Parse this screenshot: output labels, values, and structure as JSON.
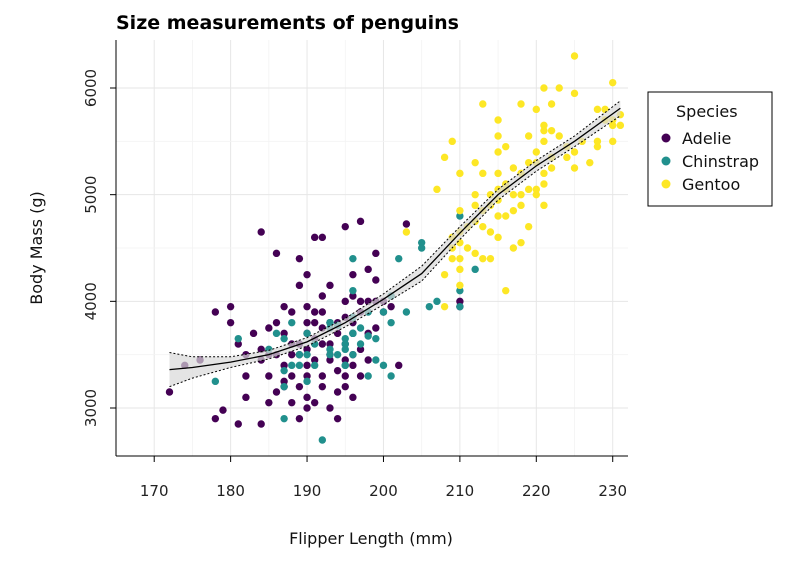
{
  "chart_data": {
    "type": "scatter",
    "title": "Size measurements of penguins",
    "xlabel": "Flipper Length (mm)",
    "ylabel": "Body Mass (g)",
    "xlim": [
      165,
      232
    ],
    "ylim": [
      2550,
      6450
    ],
    "x_ticks": [
      170,
      180,
      190,
      200,
      210,
      220,
      230
    ],
    "y_ticks": [
      3000,
      4000,
      5000,
      6000
    ],
    "grid": true,
    "legend": {
      "title": "Species",
      "placement": "right"
    },
    "series": [
      {
        "name": "Adelie",
        "color": "#440154",
        "points": [
          [
            172,
            3150
          ],
          [
            174,
            3400
          ],
          [
            176,
            3450
          ],
          [
            178,
            3900
          ],
          [
            178,
            2900
          ],
          [
            179,
            2980
          ],
          [
            180,
            3800
          ],
          [
            180,
            3950
          ],
          [
            181,
            3600
          ],
          [
            181,
            2850
          ],
          [
            182,
            3300
          ],
          [
            182,
            3500
          ],
          [
            182,
            3100
          ],
          [
            183,
            3700
          ],
          [
            184,
            3550
          ],
          [
            184,
            3450
          ],
          [
            184,
            2850
          ],
          [
            184,
            4650
          ],
          [
            185,
            3750
          ],
          [
            185,
            3300
          ],
          [
            185,
            3500
          ],
          [
            185,
            3050
          ],
          [
            186,
            3500
          ],
          [
            186,
            3150
          ],
          [
            186,
            4450
          ],
          [
            186,
            3800
          ],
          [
            187,
            3400
          ],
          [
            187,
            3700
          ],
          [
            187,
            3950
          ],
          [
            187,
            3200
          ],
          [
            187,
            3250
          ],
          [
            188,
            3600
          ],
          [
            188,
            3300
          ],
          [
            188,
            3500
          ],
          [
            188,
            3900
          ],
          [
            188,
            3050
          ],
          [
            189,
            3500
          ],
          [
            189,
            3600
          ],
          [
            189,
            4150
          ],
          [
            189,
            3200
          ],
          [
            189,
            2900
          ],
          [
            189,
            4400
          ],
          [
            190,
            3550
          ],
          [
            190,
            3950
          ],
          [
            190,
            3700
          ],
          [
            190,
            3400
          ],
          [
            190,
            4250
          ],
          [
            190,
            3100
          ],
          [
            190,
            3800
          ],
          [
            190,
            3000
          ],
          [
            190,
            3300
          ],
          [
            191,
            3800
          ],
          [
            191,
            3450
          ],
          [
            191,
            4600
          ],
          [
            191,
            3050
          ],
          [
            191,
            3650
          ],
          [
            191,
            3900
          ],
          [
            192,
            3600
          ],
          [
            192,
            3900
          ],
          [
            192,
            3300
          ],
          [
            192,
            4600
          ],
          [
            192,
            3750
          ],
          [
            192,
            4050
          ],
          [
            192,
            3200
          ],
          [
            193,
            3800
          ],
          [
            193,
            3600
          ],
          [
            193,
            3450
          ],
          [
            193,
            3000
          ],
          [
            193,
            3500
          ],
          [
            193,
            4150
          ],
          [
            194,
            3350
          ],
          [
            194,
            3800
          ],
          [
            194,
            3700
          ],
          [
            194,
            3150
          ],
          [
            194,
            2900
          ],
          [
            195,
            4000
          ],
          [
            195,
            3850
          ],
          [
            195,
            3300
          ],
          [
            195,
            3600
          ],
          [
            195,
            3450
          ],
          [
            195,
            4700
          ],
          [
            195,
            3200
          ],
          [
            196,
            3800
          ],
          [
            196,
            3400
          ],
          [
            196,
            4050
          ],
          [
            196,
            3700
          ],
          [
            196,
            4250
          ],
          [
            196,
            3500
          ],
          [
            196,
            3100
          ],
          [
            197,
            3550
          ],
          [
            197,
            3900
          ],
          [
            197,
            4000
          ],
          [
            197,
            3300
          ],
          [
            197,
            4750
          ],
          [
            198,
            4000
          ],
          [
            198,
            3700
          ],
          [
            198,
            4300
          ],
          [
            198,
            3450
          ],
          [
            199,
            4000
          ],
          [
            199,
            3750
          ],
          [
            199,
            4200
          ],
          [
            199,
            4450
          ],
          [
            200,
            3900
          ],
          [
            200,
            4000
          ],
          [
            201,
            4050
          ],
          [
            201,
            3950
          ],
          [
            202,
            3400
          ],
          [
            203,
            4725
          ],
          [
            210,
            4000
          ],
          [
            210,
            3950
          ]
        ]
      },
      {
        "name": "Chinstrap",
        "color": "#21908d",
        "points": [
          [
            178,
            3250
          ],
          [
            181,
            3650
          ],
          [
            185,
            3550
          ],
          [
            186,
            3700
          ],
          [
            187,
            3650
          ],
          [
            187,
            3350
          ],
          [
            187,
            2900
          ],
          [
            187,
            3200
          ],
          [
            188,
            3400
          ],
          [
            188,
            3800
          ],
          [
            189,
            3500
          ],
          [
            189,
            3400
          ],
          [
            190,
            3700
          ],
          [
            190,
            3500
          ],
          [
            190,
            3250
          ],
          [
            191,
            3600
          ],
          [
            191,
            3400
          ],
          [
            192,
            2700
          ],
          [
            193,
            3800
          ],
          [
            193,
            3550
          ],
          [
            193,
            3500
          ],
          [
            193,
            3750
          ],
          [
            193,
            3800
          ],
          [
            194,
            3500
          ],
          [
            194,
            3775
          ],
          [
            195,
            3400
          ],
          [
            195,
            3600
          ],
          [
            195,
            3550
          ],
          [
            195,
            3400
          ],
          [
            195,
            3650
          ],
          [
            196,
            3850
          ],
          [
            196,
            3700
          ],
          [
            196,
            4400
          ],
          [
            196,
            3500
          ],
          [
            196,
            4100
          ],
          [
            196,
            3700
          ],
          [
            197,
            3750
          ],
          [
            197,
            3600
          ],
          [
            198,
            3675
          ],
          [
            198,
            3300
          ],
          [
            198,
            3900
          ],
          [
            199,
            3650
          ],
          [
            199,
            3450
          ],
          [
            200,
            3400
          ],
          [
            200,
            3900
          ],
          [
            201,
            3300
          ],
          [
            201,
            3800
          ],
          [
            201,
            4050
          ],
          [
            202,
            4400
          ],
          [
            203,
            3900
          ],
          [
            205,
            4550
          ],
          [
            205,
            4500
          ],
          [
            206,
            3950
          ],
          [
            207,
            4000
          ],
          [
            210,
            4100
          ],
          [
            210,
            4800
          ],
          [
            210,
            3950
          ],
          [
            212,
            4300
          ]
        ]
      },
      {
        "name": "Gentoo",
        "color": "#fde725",
        "points": [
          [
            203,
            4650
          ],
          [
            207,
            5050
          ],
          [
            208,
            5350
          ],
          [
            208,
            3950
          ],
          [
            208,
            4250
          ],
          [
            209,
            4400
          ],
          [
            209,
            5500
          ],
          [
            209,
            4500
          ],
          [
            209,
            4600
          ],
          [
            210,
            4150
          ],
          [
            210,
            4300
          ],
          [
            210,
            4650
          ],
          [
            210,
            4400
          ],
          [
            210,
            4550
          ],
          [
            210,
            4850
          ],
          [
            210,
            5200
          ],
          [
            211,
            4700
          ],
          [
            211,
            4500
          ],
          [
            212,
            4900
          ],
          [
            212,
            4750
          ],
          [
            212,
            5000
          ],
          [
            212,
            5300
          ],
          [
            212,
            4450
          ],
          [
            213,
            4400
          ],
          [
            213,
            5850
          ],
          [
            213,
            4700
          ],
          [
            213,
            4850
          ],
          [
            213,
            5200
          ],
          [
            214,
            4900
          ],
          [
            214,
            5000
          ],
          [
            214,
            4400
          ],
          [
            214,
            4650
          ],
          [
            215,
            5200
          ],
          [
            215,
            5400
          ],
          [
            215,
            5550
          ],
          [
            215,
            4800
          ],
          [
            215,
            5050
          ],
          [
            215,
            4600
          ],
          [
            215,
            5700
          ],
          [
            215,
            4950
          ],
          [
            216,
            5100
          ],
          [
            216,
            5050
          ],
          [
            216,
            4100
          ],
          [
            216,
            4800
          ],
          [
            216,
            5450
          ],
          [
            217,
            5000
          ],
          [
            217,
            5250
          ],
          [
            217,
            4850
          ],
          [
            217,
            4500
          ],
          [
            218,
            4900
          ],
          [
            218,
            5200
          ],
          [
            218,
            4550
          ],
          [
            218,
            5850
          ],
          [
            218,
            5000
          ],
          [
            219,
            5300
          ],
          [
            219,
            5550
          ],
          [
            219,
            4700
          ],
          [
            219,
            5050
          ],
          [
            220,
            5300
          ],
          [
            220,
            5000
          ],
          [
            220,
            5400
          ],
          [
            220,
            5800
          ],
          [
            220,
            5050
          ],
          [
            221,
            5200
          ],
          [
            221,
            5650
          ],
          [
            221,
            5600
          ],
          [
            221,
            6000
          ],
          [
            221,
            5500
          ],
          [
            221,
            5100
          ],
          [
            221,
            4900
          ],
          [
            222,
            5850
          ],
          [
            222,
            5350
          ],
          [
            222,
            5600
          ],
          [
            222,
            5250
          ],
          [
            223,
            6000
          ],
          [
            223,
            5550
          ],
          [
            224,
            5350
          ],
          [
            224,
            5450
          ],
          [
            225,
            5950
          ],
          [
            225,
            6300
          ],
          [
            225,
            5400
          ],
          [
            225,
            5250
          ],
          [
            226,
            5500
          ],
          [
            227,
            5300
          ],
          [
            228,
            5800
          ],
          [
            228,
            5500
          ],
          [
            228,
            5450
          ],
          [
            229,
            5700
          ],
          [
            229,
            5800
          ],
          [
            230,
            5700
          ],
          [
            230,
            6050
          ],
          [
            230,
            5650
          ],
          [
            230,
            5500
          ],
          [
            231,
            5650
          ],
          [
            231,
            5750
          ]
        ]
      }
    ],
    "smooth": {
      "type": "loess",
      "color": "#000000",
      "ribbon_color": "#d9d9d9",
      "x": [
        172,
        175,
        180,
        185,
        190,
        195,
        200,
        205,
        210,
        215,
        220,
        225,
        231
      ],
      "y": [
        3360,
        3380,
        3430,
        3500,
        3620,
        3800,
        4020,
        4260,
        4640,
        5000,
        5270,
        5500,
        5810
      ],
      "upper": [
        3520,
        3480,
        3480,
        3540,
        3660,
        3840,
        4070,
        4330,
        4700,
        5050,
        5320,
        5550,
        5880
      ],
      "lower": [
        3200,
        3280,
        3380,
        3460,
        3580,
        3760,
        3970,
        4190,
        4580,
        4950,
        5220,
        5450,
        5740
      ]
    }
  }
}
